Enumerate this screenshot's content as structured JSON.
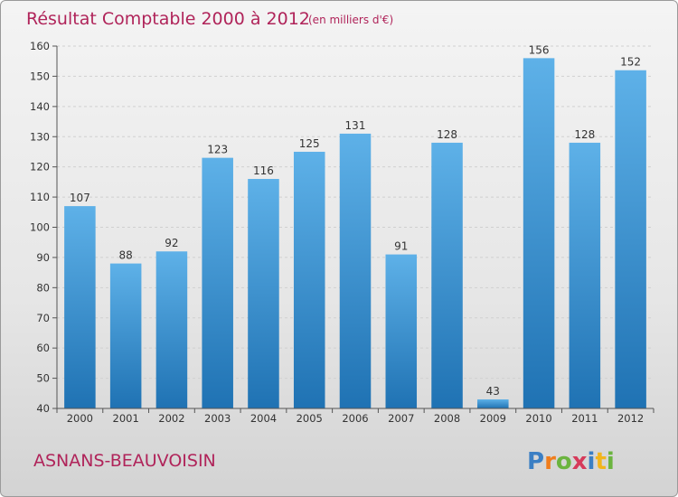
{
  "chart_data": {
    "type": "bar",
    "title": "Résultat Comptable 2000 à 2012",
    "subtitle": "(en milliers d'€)",
    "categories": [
      "2000",
      "2001",
      "2002",
      "2003",
      "2004",
      "2005",
      "2006",
      "2007",
      "2008",
      "2009",
      "2010",
      "2011",
      "2012"
    ],
    "values": [
      107,
      88,
      92,
      123,
      116,
      125,
      131,
      91,
      128,
      43,
      156,
      128,
      152
    ],
    "ylim": [
      40,
      160
    ],
    "yticks": [
      40,
      50,
      60,
      70,
      80,
      90,
      100,
      110,
      120,
      130,
      140,
      150,
      160
    ],
    "grid": true,
    "xlabel": "",
    "ylabel": ""
  },
  "footer": {
    "place": "ASNANS-BEAUVOISIN",
    "brand_letters": [
      "P",
      "r",
      "o",
      "x",
      "i",
      "t",
      "i"
    ]
  },
  "colors": {
    "title": "#b0245a",
    "bar_light": "#5aaee6",
    "bar_dark": "#1f73b4",
    "grid": "#d0d0d0",
    "brand": [
      "#3b7fc4",
      "#f07d1c",
      "#6bb43f",
      "#d63a5a",
      "#3b7fc4",
      "#f2b51d",
      "#6bb43f"
    ]
  }
}
